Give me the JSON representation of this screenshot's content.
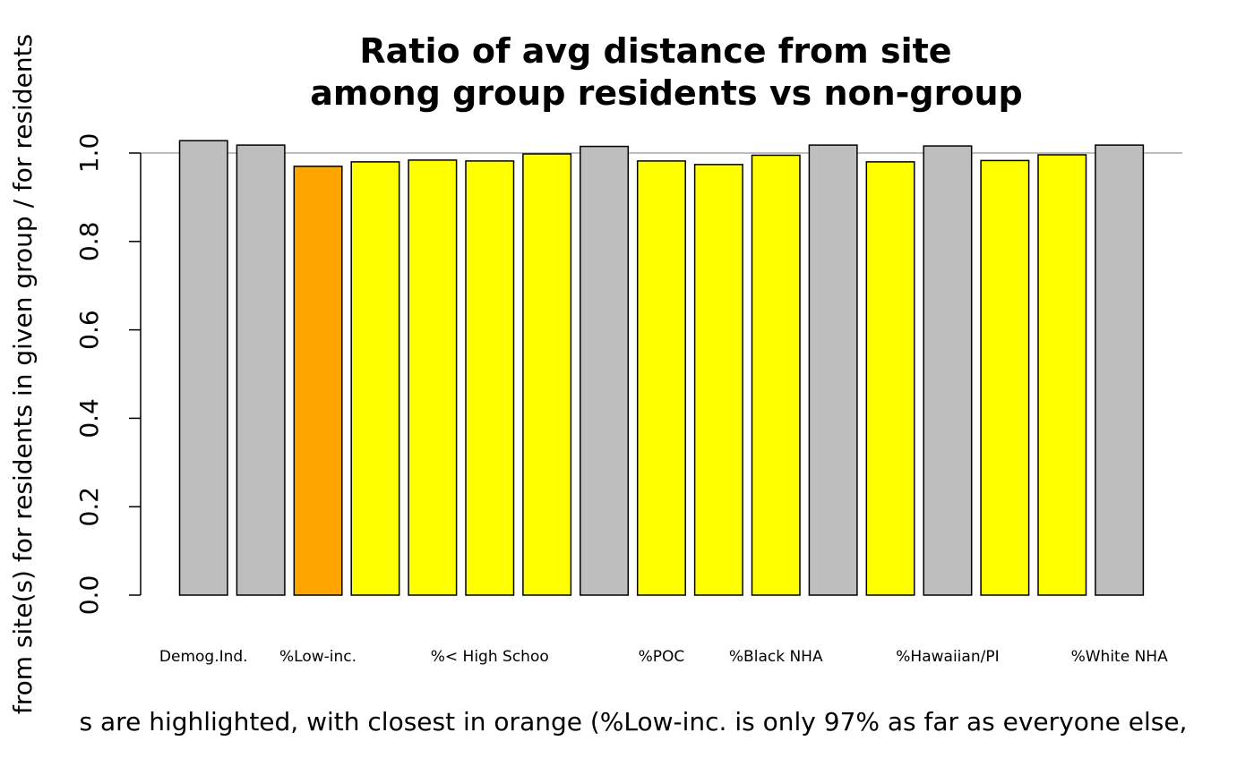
{
  "chart_data": {
    "type": "bar",
    "title_line1": "Ratio of avg distance from site",
    "title_line2": "among group residents vs non-group",
    "ylabel": "from site(s) for residents in given group / for residents",
    "xlabel": "s are highlighted, with closest in orange (%Low-inc. is only 97% as far as everyone else,",
    "ylim": [
      0,
      1.0
    ],
    "yticks": [
      "0.0",
      "0.2",
      "0.4",
      "0.6",
      "0.8",
      "1.0"
    ],
    "reference_line": 1.0,
    "category_labels": [
      {
        "index": 0,
        "text": "Demog.Ind."
      },
      {
        "index": 2,
        "text": "%Low-inc."
      },
      {
        "index": 5,
        "text": "%< High Schoo"
      },
      {
        "index": 8,
        "text": "%POC"
      },
      {
        "index": 10,
        "text": "%Black NHA"
      },
      {
        "index": 13,
        "text": "%Hawaiian/PI"
      },
      {
        "index": 16,
        "text": "%White NHA"
      }
    ],
    "values": [
      1.028,
      1.018,
      0.97,
      0.98,
      0.984,
      0.982,
      0.998,
      1.015,
      0.982,
      0.974,
      0.995,
      1.018,
      0.98,
      1.016,
      0.983,
      0.996,
      1.018
    ],
    "bar_colors": [
      "#bebebe",
      "#bebebe",
      "#ffa500",
      "#ffff00",
      "#ffff00",
      "#ffff00",
      "#ffff00",
      "#bebebe",
      "#ffff00",
      "#ffff00",
      "#ffff00",
      "#bebebe",
      "#ffff00",
      "#bebebe",
      "#ffff00",
      "#ffff00",
      "#bebebe"
    ],
    "grid": false
  }
}
